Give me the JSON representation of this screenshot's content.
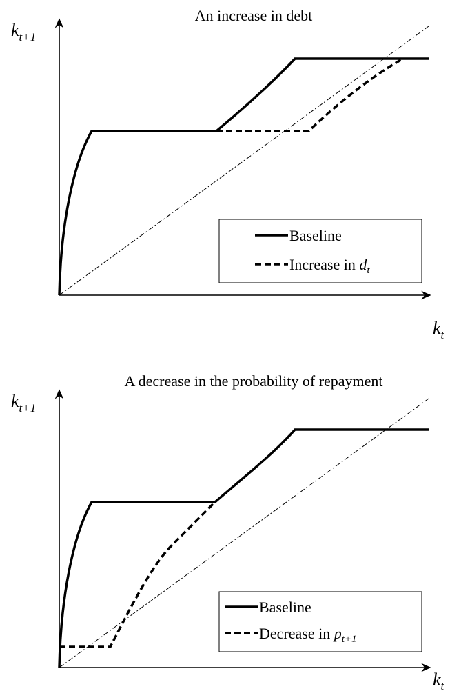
{
  "panels": [
    {
      "title": "An increase in debt",
      "y_label": {
        "base": "k",
        "sub": "t+1"
      },
      "x_label": {
        "base": "k",
        "sub": "t"
      },
      "legend": [
        {
          "text": "Baseline"
        },
        {
          "text": "Increase in ",
          "math": "d",
          "sub": "t"
        }
      ]
    },
    {
      "title": "A decrease in the probability of repayment",
      "y_label": {
        "base": "k",
        "sub": "t+1"
      },
      "x_label": {
        "base": "k",
        "sub": "t"
      },
      "legend": [
        {
          "text": "Baseline"
        },
        {
          "text": "Decrease in ",
          "math": "p",
          "sub": "t+1"
        }
      ]
    }
  ]
}
